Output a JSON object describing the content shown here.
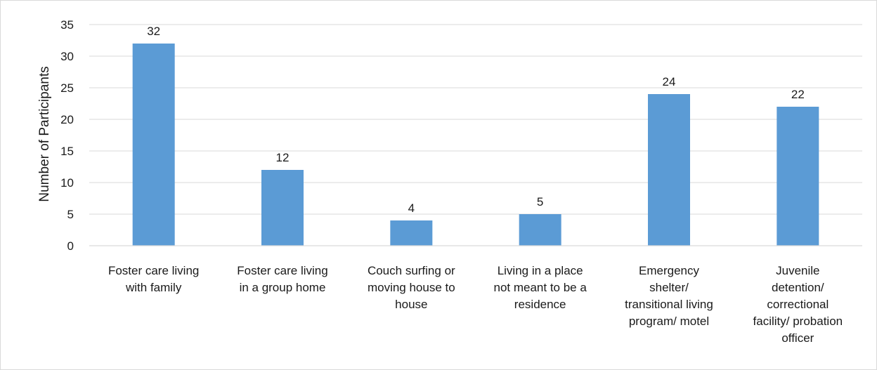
{
  "chart_data": {
    "type": "bar",
    "categories": [
      [
        "Foster care living",
        "with family"
      ],
      [
        "Foster care living",
        "in a group home"
      ],
      [
        "Couch surfing or",
        "moving house to",
        "house"
      ],
      [
        "Living in a place",
        "not meant to be a",
        "residence"
      ],
      [
        "Emergency",
        "shelter/",
        "transitional living",
        "program/ motel"
      ],
      [
        "Juvenile",
        "detention/",
        "correctional",
        "facility/ probation",
        "officer"
      ]
    ],
    "values": [
      32,
      12,
      4,
      5,
      24,
      22
    ],
    "data_labels": [
      "32",
      "12",
      "4",
      "5",
      "24",
      "22"
    ],
    "ylabel": "Number of Participants",
    "xlabel": "",
    "ylim": [
      0,
      35
    ],
    "yticks": [
      0,
      5,
      10,
      15,
      20,
      25,
      30,
      35
    ],
    "grid": true,
    "legend": "none",
    "bar_color": "#5b9bd5"
  }
}
